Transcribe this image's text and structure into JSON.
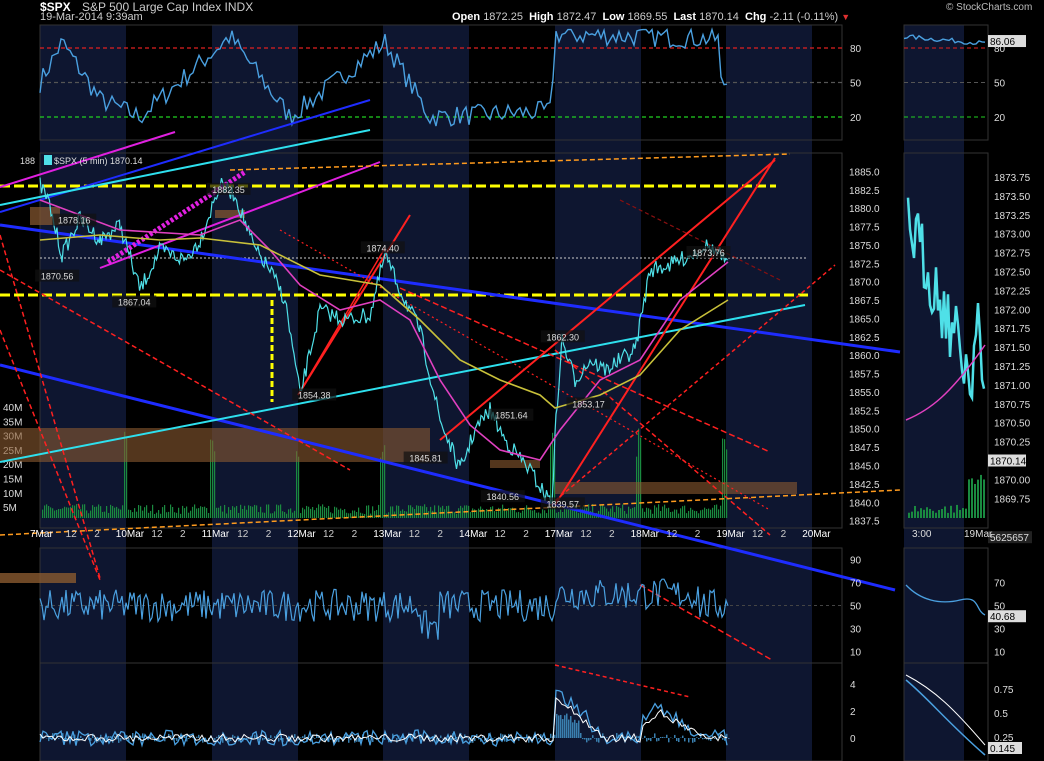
{
  "header": {
    "symbol": "$SPX",
    "title": "S&P 500 Large Cap Index  INDX",
    "timestamp": "19-Mar-2014 9:39am",
    "open_label": "Open",
    "open": "1872.25",
    "high_label": "High",
    "high": "1872.47",
    "low_label": "Low",
    "low": "1869.55",
    "last_label": "Last",
    "last": "1870.14",
    "chg_label": "Chg",
    "chg": "-2.11 (-0.11%)",
    "watermark": "© StockCharts.com"
  },
  "colors": {
    "price": "#4fe0e8",
    "ma_short": "#e040c0",
    "ma_long": "#c8c03a",
    "trend_red": "#ff2020",
    "trend_blue": "#1e2cff",
    "trend_cyan": "#2ee0ee",
    "trend_magenta": "#e020e0",
    "trend_yellow": "#ffff00",
    "trend_orange": "#ff9b1e",
    "rsi": "#4aa0e0",
    "volume": "#1a8a40"
  },
  "chart_data": [
    {
      "type": "line",
      "name": "rsi-top",
      "levels": [
        80,
        50,
        20
      ],
      "ylim": [
        0,
        100
      ],
      "ticks": [
        "80",
        "50",
        "20"
      ],
      "side_value": "86.06",
      "side_ticks": [
        "80",
        "50",
        "20"
      ]
    },
    {
      "type": "line",
      "name": "price",
      "legend": "$SPX (5 min) 1870.14",
      "legend_prefix": "188",
      "ylim": [
        1836.5,
        1887.5
      ],
      "y_ticks": [
        "1885.0",
        "1882.5",
        "1880.0",
        "1877.5",
        "1875.0",
        "1872.5",
        "1870.0",
        "1867.5",
        "1865.0",
        "1862.5",
        "1860.0",
        "1857.5",
        "1855.0",
        "1852.5",
        "1850.0",
        "1847.5",
        "1845.0",
        "1842.5",
        "1840.0",
        "1837.5"
      ],
      "x_ticks": [
        "7Mar",
        "12",
        "2",
        "10Mar",
        "12",
        "2",
        "11Mar",
        "12",
        "2",
        "12Mar",
        "12",
        "2",
        "13Mar",
        "12",
        "2",
        "14Mar",
        "12",
        "2",
        "17Mar",
        "12",
        "2",
        "18Mar",
        "12",
        "2",
        "19Mar",
        "12",
        "2",
        "20Mar"
      ],
      "annotations": [
        {
          "label": "1878.16",
          "x": 0.4,
          "y": 1878.16
        },
        {
          "label": "1870.56",
          "x": 0.2,
          "y": 1870.56
        },
        {
          "label": "1867.04",
          "x": 1.1,
          "y": 1867.04
        },
        {
          "label": "1882.35",
          "x": 2.2,
          "y": 1882.35
        },
        {
          "label": "1854.38",
          "x": 3.2,
          "y": 1854.38
        },
        {
          "label": "1874.40",
          "x": 4.0,
          "y": 1874.4
        },
        {
          "label": "1845.81",
          "x": 4.5,
          "y": 1845.81
        },
        {
          "label": "1851.64",
          "x": 5.5,
          "y": 1851.64
        },
        {
          "label": "1840.56",
          "x": 5.4,
          "y": 1840.56
        },
        {
          "label": "1839.57",
          "x": 6.1,
          "y": 1839.57
        },
        {
          "label": "1862.30",
          "x": 6.1,
          "y": 1862.3
        },
        {
          "label": "1853.17",
          "x": 6.4,
          "y": 1853.17
        },
        {
          "label": "1873.76",
          "x": 7.8,
          "y": 1873.76
        }
      ],
      "volume_ticks": [
        "40M",
        "35M",
        "30M",
        "25M",
        "20M",
        "15M",
        "10M",
        "5M"
      ],
      "side_ticks": [
        "1873.75",
        "1873.50",
        "1873.25",
        "1873.00",
        "1872.75",
        "1872.50",
        "1872.25",
        "1872.00",
        "1871.75",
        "1871.50",
        "1871.25",
        "1871.00",
        "1870.75",
        "1870.50",
        "1870.25",
        "1870.14",
        "1870.00",
        "1869.75",
        "5625657"
      ],
      "side_x_ticks": [
        "3:00",
        "19Mar"
      ]
    },
    {
      "type": "line",
      "name": "rsi-bottom",
      "ylim": [
        0,
        100
      ],
      "ticks": [
        "90",
        "70",
        "50",
        "30",
        "10"
      ],
      "side_ticks": [
        "70",
        "50",
        "30",
        "10"
      ],
      "side_value": "40.68"
    },
    {
      "type": "line",
      "name": "macd",
      "ticks": [
        "4",
        "2",
        "0"
      ],
      "side_ticks": [
        "0.75",
        "0.5",
        "0.25"
      ],
      "side_value": "0.145"
    }
  ]
}
